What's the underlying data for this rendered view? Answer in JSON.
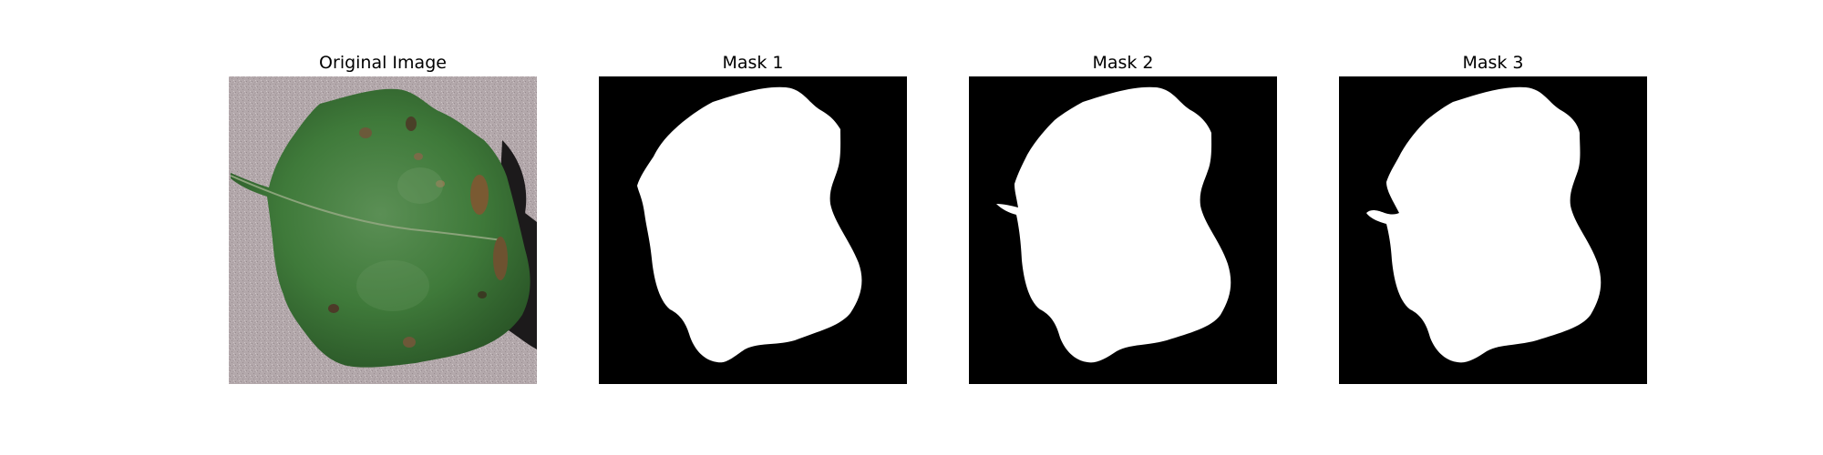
{
  "panels": [
    {
      "id": "original",
      "title": "Original Image",
      "icon": "leaf-photo"
    },
    {
      "id": "mask1",
      "title": "Mask 1",
      "icon": "leaf-mask"
    },
    {
      "id": "mask2",
      "title": "Mask 2",
      "icon": "leaf-mask"
    },
    {
      "id": "mask3",
      "title": "Mask 3",
      "icon": "leaf-mask"
    }
  ],
  "colors": {
    "background_photo": "#b3a8ab",
    "leaf": "#3f7a3a",
    "leaf_dark": "#2f5f2c",
    "mask_background": "#000000",
    "mask_foreground": "#ffffff"
  }
}
